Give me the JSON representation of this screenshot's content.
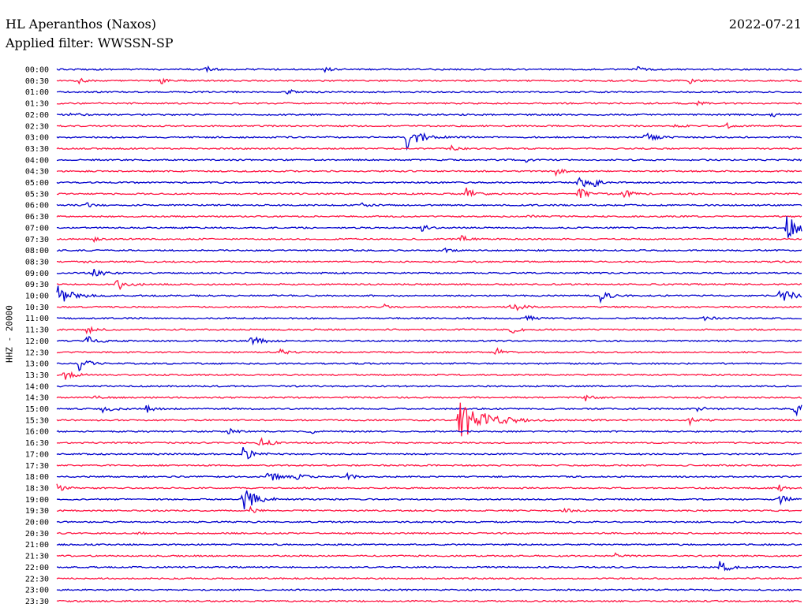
{
  "header": {
    "station": "HL Aperanthos (Naxos)",
    "filter": "Applied filter: WWSSN-SP",
    "date": "2022-07-21"
  },
  "chart_data": {
    "type": "line",
    "title": "HL Aperanthos (Naxos)",
    "subtitle": "Applied filter: WWSSN-SP",
    "date": "2022-07-21",
    "ylabel": "HHZ - 20000",
    "colors": [
      "#0000cc",
      "#ff1744"
    ],
    "rows": [
      {
        "label": "00:00",
        "events": [
          [
            0.2,
            4
          ],
          [
            0.36,
            3
          ],
          [
            0.78,
            3
          ]
        ]
      },
      {
        "label": "00:30",
        "events": [
          [
            0.03,
            3
          ],
          [
            0.14,
            4
          ],
          [
            0.85,
            3
          ]
        ]
      },
      {
        "label": "01:00",
        "events": [
          [
            0.31,
            4
          ]
        ]
      },
      {
        "label": "01:30",
        "events": [
          [
            0.86,
            3
          ]
        ]
      },
      {
        "label": "02:00",
        "events": [
          [
            0.02,
            4
          ],
          [
            0.96,
            3
          ]
        ]
      },
      {
        "label": "02:30",
        "events": [
          [
            0.83,
            3
          ],
          [
            0.9,
            3
          ]
        ]
      },
      {
        "label": "03:00",
        "events": [
          [
            0.47,
            14
          ],
          [
            0.79,
            7
          ]
        ]
      },
      {
        "label": "03:30",
        "events": [
          [
            0.53,
            4
          ]
        ]
      },
      {
        "label": "04:00",
        "events": [
          [
            0.63,
            4
          ]
        ]
      },
      {
        "label": "04:30",
        "events": [
          [
            0.67,
            5
          ]
        ]
      },
      {
        "label": "05:00",
        "events": [
          [
            0.7,
            9
          ],
          [
            0.72,
            5
          ]
        ]
      },
      {
        "label": "05:30",
        "events": [
          [
            0.55,
            7
          ],
          [
            0.7,
            8
          ],
          [
            0.76,
            7
          ]
        ]
      },
      {
        "label": "06:00",
        "events": [
          [
            0.04,
            3
          ],
          [
            0.41,
            4
          ]
        ]
      },
      {
        "label": "06:30",
        "events": [
          [
            0.63,
            3
          ]
        ]
      },
      {
        "label": "07:00",
        "events": [
          [
            0.49,
            4
          ],
          [
            0.98,
            16
          ]
        ]
      },
      {
        "label": "07:30",
        "events": [
          [
            0.05,
            4
          ],
          [
            0.54,
            6
          ]
        ]
      },
      {
        "label": "08:00",
        "events": [
          [
            0.52,
            3
          ]
        ]
      },
      {
        "label": "08:30",
        "events": [
          [
            0.03,
            3
          ]
        ]
      },
      {
        "label": "09:00",
        "events": [
          [
            0.05,
            9
          ]
        ]
      },
      {
        "label": "09:30",
        "events": [
          [
            0.08,
            8
          ]
        ]
      },
      {
        "label": "10:00",
        "events": [
          [
            0.0,
            14
          ],
          [
            0.73,
            7
          ],
          [
            0.97,
            12
          ]
        ]
      },
      {
        "label": "10:30",
        "events": [
          [
            0.44,
            3
          ],
          [
            0.61,
            7
          ]
        ]
      },
      {
        "label": "11:00",
        "events": [
          [
            0.63,
            4
          ],
          [
            0.87,
            4
          ]
        ]
      },
      {
        "label": "11:30",
        "events": [
          [
            0.04,
            6
          ],
          [
            0.61,
            5
          ]
        ]
      },
      {
        "label": "12:00",
        "events": [
          [
            0.04,
            7
          ],
          [
            0.26,
            8
          ]
        ]
      },
      {
        "label": "12:30",
        "events": [
          [
            0.3,
            4
          ],
          [
            0.59,
            5
          ]
        ]
      },
      {
        "label": "13:00",
        "events": [
          [
            0.03,
            8
          ]
        ]
      },
      {
        "label": "13:30",
        "events": [
          [
            0.01,
            7
          ]
        ]
      },
      {
        "label": "14:00",
        "events": []
      },
      {
        "label": "14:30",
        "events": [
          [
            0.05,
            3
          ],
          [
            0.71,
            4
          ]
        ]
      },
      {
        "label": "15:00",
        "events": [
          [
            0.06,
            7
          ],
          [
            0.12,
            5
          ],
          [
            0.86,
            5
          ],
          [
            0.99,
            9
          ]
        ]
      },
      {
        "label": "15:30",
        "events": [
          [
            0.54,
            28
          ],
          [
            0.85,
            6
          ]
        ]
      },
      {
        "label": "16:00",
        "events": [
          [
            0.23,
            5
          ],
          [
            0.34,
            3
          ]
        ]
      },
      {
        "label": "16:30",
        "events": [
          [
            0.27,
            8
          ]
        ]
      },
      {
        "label": "17:00",
        "events": [
          [
            0.25,
            9
          ]
        ]
      },
      {
        "label": "17:30",
        "events": []
      },
      {
        "label": "18:00",
        "events": [
          [
            0.28,
            9
          ],
          [
            0.32,
            5
          ],
          [
            0.39,
            4
          ]
        ]
      },
      {
        "label": "18:30",
        "events": [
          [
            0.0,
            5
          ],
          [
            0.97,
            4
          ]
        ]
      },
      {
        "label": "19:00",
        "events": [
          [
            0.25,
            14
          ],
          [
            0.97,
            7
          ]
        ]
      },
      {
        "label": "19:30",
        "events": [
          [
            0.26,
            4
          ],
          [
            0.68,
            4
          ]
        ]
      },
      {
        "label": "20:00",
        "events": []
      },
      {
        "label": "20:30",
        "events": [
          [
            0.11,
            3
          ]
        ]
      },
      {
        "label": "21:00",
        "events": []
      },
      {
        "label": "21:30",
        "events": [
          [
            0.75,
            3
          ]
        ]
      },
      {
        "label": "22:00",
        "events": [
          [
            0.89,
            9
          ]
        ]
      },
      {
        "label": "22:30",
        "events": []
      },
      {
        "label": "23:00",
        "events": []
      },
      {
        "label": "23:30",
        "events": []
      }
    ]
  }
}
